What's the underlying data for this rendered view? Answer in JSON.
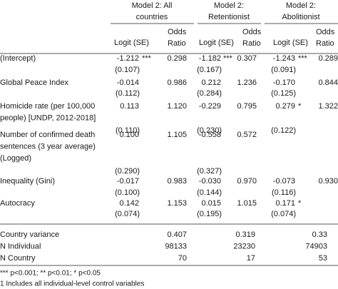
{
  "header": {
    "groups": [
      [
        "Model 2: All",
        "countries"
      ],
      [
        "Model 2:",
        "Retentionist"
      ],
      [
        "Model 2:",
        "Abolitionist"
      ]
    ],
    "columns": [
      {
        "logit": "Logit (SE)",
        "odds": [
          "Odds",
          "Ratio"
        ]
      },
      {
        "logit": "Logit (SE)",
        "odds": [
          "Odds",
          "Ratio"
        ]
      },
      {
        "logit": "Logit (SE)",
        "odds": [
          "Odds",
          "Ratio"
        ]
      }
    ]
  },
  "table": {
    "rows": [
      {
        "label": [
          "(Intercept)"
        ],
        "cells": [
          [
            "-1.212",
            "***",
            "0.298"
          ],
          [
            "-1.182",
            "***",
            "0.307"
          ],
          [
            "-1.243",
            "***",
            "0.289"
          ]
        ],
        "se": [
          "(0.107)",
          "(0.167)",
          "(0.091)"
        ]
      },
      {
        "label": [
          "Global Peace Index"
        ],
        "cells": [
          [
            "-0.014",
            null,
            "0.986"
          ],
          [
            "0.212",
            null,
            "1.236"
          ],
          [
            "-0.170",
            null,
            "0.844"
          ]
        ],
        "se": [
          "(0.112)",
          "(0.284)",
          "(0.125)"
        ]
      },
      {
        "label": [
          "Homicide rate (per 100,000",
          "people) [UNDP, 2012-2018]"
        ],
        "cells": [
          [
            "0.113",
            null,
            "1.120"
          ],
          [
            "-0.229",
            null,
            "0.795"
          ],
          [
            "0.279",
            "*",
            "1.322"
          ]
        ],
        "se": [
          "(0.110)",
          "(0.230)",
          "(0.122)"
        ]
      },
      {
        "label": [
          "Number of confirmed death",
          "sentences (3 year average)",
          "(Logged)"
        ],
        "cells": [
          [
            "0.100",
            null,
            "1.105"
          ],
          [
            "-0.558",
            null,
            "0.572"
          ],
          null
        ],
        "se": [
          "(0.290)",
          "(0.327)",
          null
        ]
      },
      {
        "label": [
          "Inequality (Gini)"
        ],
        "cells": [
          [
            "-0.017",
            null,
            "0.983"
          ],
          [
            "-0.030",
            null,
            "0.970"
          ],
          [
            "-0.073",
            null,
            "0.930"
          ]
        ],
        "se": [
          "(0.100)",
          "(0.144)",
          "(0.116)"
        ]
      },
      {
        "label": [
          "Autocracy"
        ],
        "cells": [
          [
            "0.142",
            null,
            "1.153"
          ],
          [
            "0.015",
            null,
            "1.015"
          ],
          [
            "0.171",
            "*",
            null
          ]
        ],
        "se": [
          "(0.074)",
          "(0.195)",
          "(0.074)"
        ]
      }
    ],
    "stats": [
      {
        "label": "Country variance",
        "values": [
          "0.407",
          "0.319",
          "0.33"
        ]
      },
      {
        "label": "N Individual",
        "values": [
          "98133",
          "23230",
          "74903"
        ]
      },
      {
        "label": "N Country",
        "values": [
          "70",
          "17",
          "53"
        ]
      }
    ]
  },
  "footnotes": [
    "*** p<0.001; ** p<0.01; * p<0.05",
    "1 Includes all individual-level control variables"
  ]
}
